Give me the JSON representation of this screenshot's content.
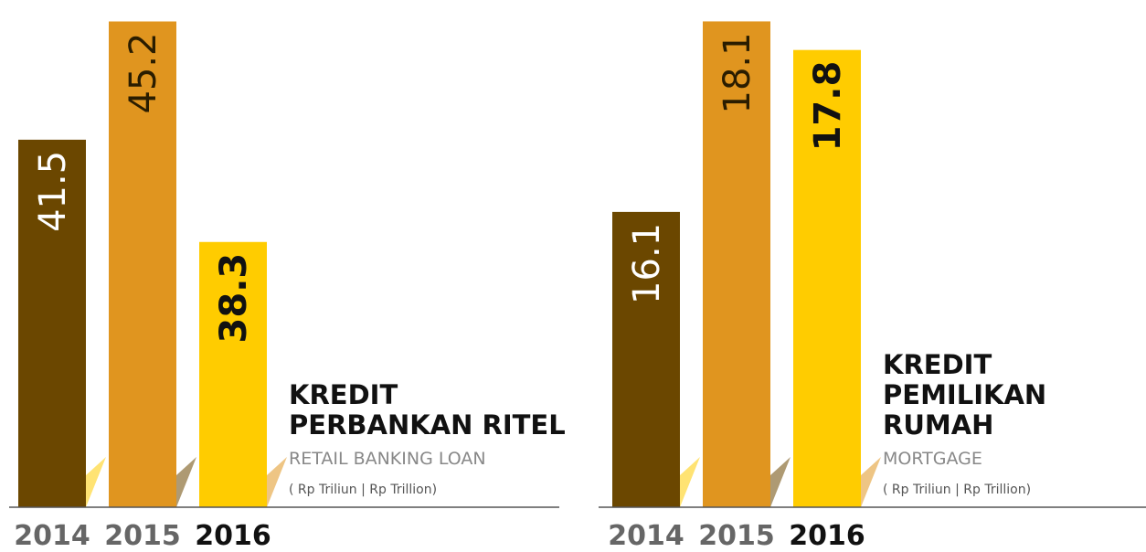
{
  "chart_data": [
    {
      "type": "bar",
      "title": [
        "KREDIT",
        "PERBANKAN RITEL"
      ],
      "subtitle": "RETAIL BANKING LOAN",
      "unit": "( Rp Triliun | Rp Trillion)",
      "categories": [
        "2014",
        "2015",
        "2016"
      ],
      "values": [
        41.5,
        45.2,
        38.3
      ],
      "colors": [
        "#6b4700",
        "#e0951f",
        "#ffcc00"
      ],
      "highlight": 2,
      "ylim": [
        30,
        45.5
      ]
    },
    {
      "type": "bar",
      "title": [
        "KREDIT",
        "PEMILIKAN",
        "RUMAH"
      ],
      "subtitle": "MORTGAGE",
      "unit": "( Rp Triliun | Rp Trillion)",
      "categories": [
        "2014",
        "2015",
        "2016"
      ],
      "values": [
        16.1,
        18.1,
        17.8
      ],
      "colors": [
        "#6b4700",
        "#e0951f",
        "#ffcc00"
      ],
      "highlight": 2,
      "ylim": [
        13,
        18.2
      ]
    }
  ]
}
